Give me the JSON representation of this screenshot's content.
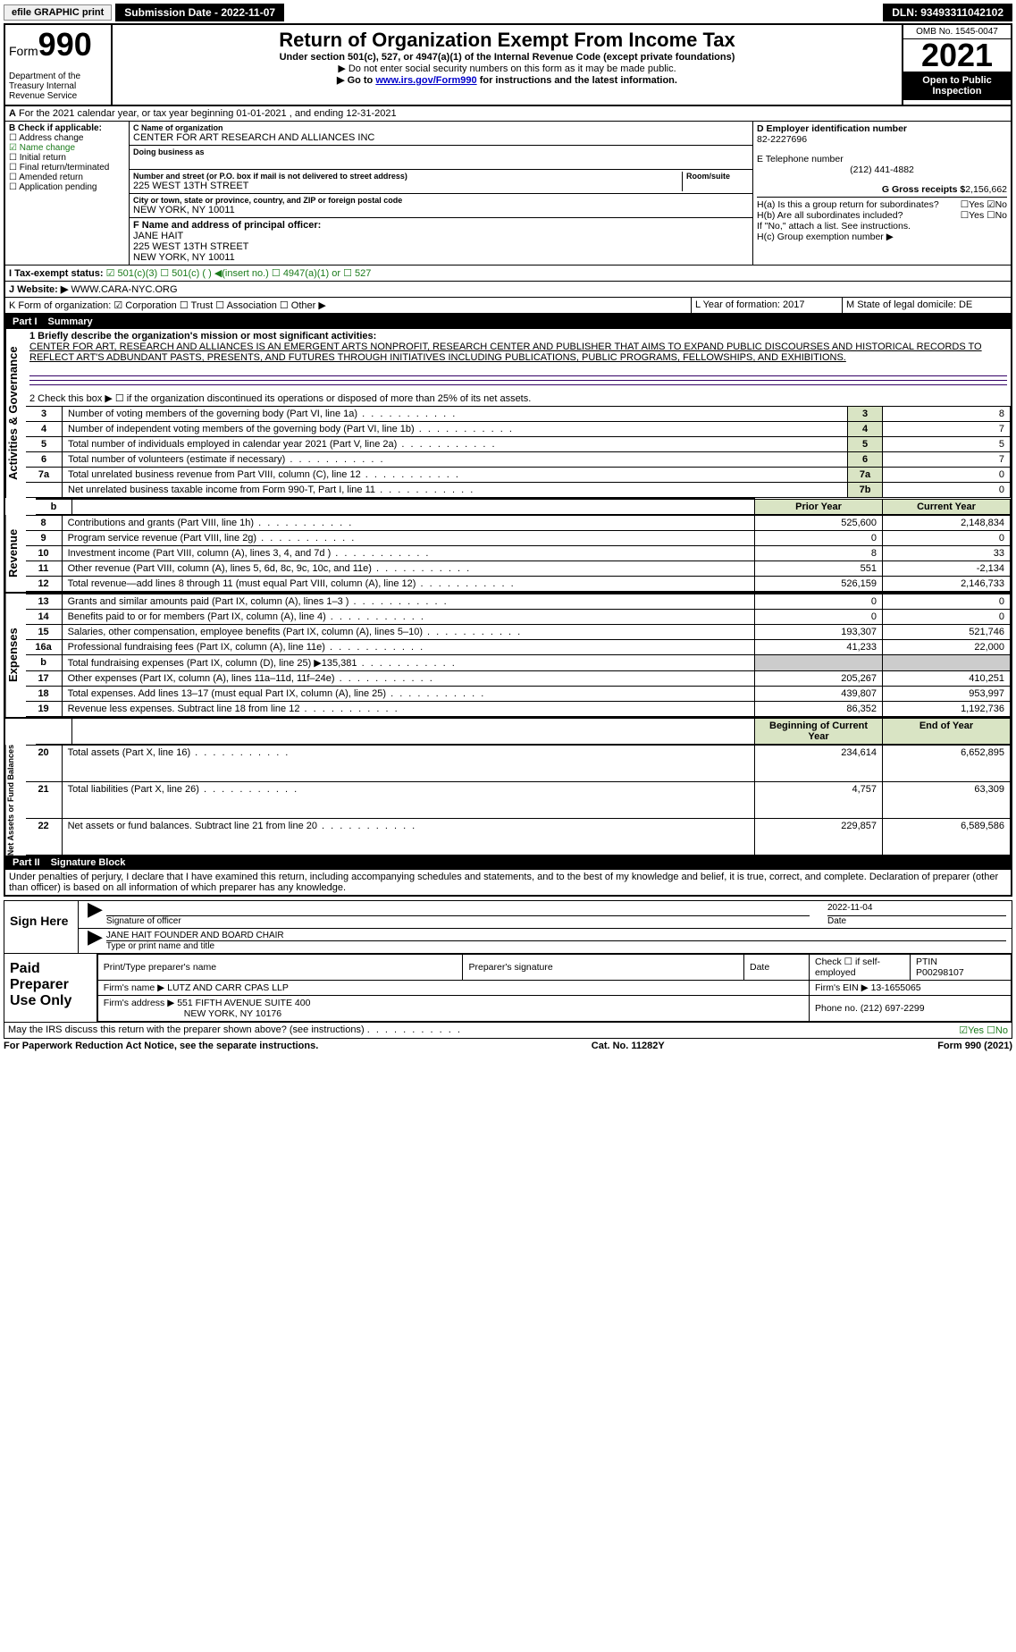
{
  "topbar": {
    "efile": "efile GRAPHIC print",
    "submission": "Submission Date - 2022-11-07",
    "dln": "DLN: 93493311042102"
  },
  "header": {
    "form_label": "Form",
    "form_number": "990",
    "dept": "Department of the Treasury Internal Revenue Service",
    "title": "Return of Organization Exempt From Income Tax",
    "subtitle": "Under section 501(c), 527, or 4947(a)(1) of the Internal Revenue Code (except private foundations)",
    "note1": "▶ Do not enter social security numbers on this form as it may be made public.",
    "note2_prefix": "▶ Go to ",
    "note2_link": "www.irs.gov/Form990",
    "note2_suffix": " for instructions and the latest information.",
    "omb": "OMB No. 1545-0047",
    "year": "2021",
    "open_public": "Open to Public Inspection"
  },
  "line_a": "For the 2021 calendar year, or tax year beginning 01-01-2021    , and ending 12-31-2021",
  "checklist": {
    "header": "B Check if applicable:",
    "items": [
      "☐ Address change",
      "☑ Name change",
      "☐ Initial return",
      "☐ Final return/terminated",
      "☐ Amended return",
      "☐ Application pending"
    ]
  },
  "org": {
    "c_label": "C Name of organization",
    "name": "CENTER FOR ART RESEARCH AND ALLIANCES INC",
    "dba_label": "Doing business as",
    "addr_label": "Number and street (or P.O. box if mail is not delivered to street address)",
    "room_label": "Room/suite",
    "addr": "225 WEST 13TH STREET",
    "city_label": "City or town, state or province, country, and ZIP or foreign postal code",
    "city": "NEW YORK, NY  10011",
    "f_label": "F Name and address of principal officer:",
    "officer_name": "JANE HAIT",
    "officer_addr1": "225 WEST 13TH STREET",
    "officer_addr2": "NEW YORK, NY  10011"
  },
  "right": {
    "d_label": "D Employer identification number",
    "ein": "82-2227696",
    "e_label": "E Telephone number",
    "phone": "(212) 441-4882",
    "g_label": "G Gross receipts $",
    "gross": "2,156,662",
    "ha_label": "H(a)  Is this a group return for subordinates?",
    "ha_ans": "☐Yes ☑No",
    "hb_label": "H(b)  Are all subordinates included?",
    "hb_ans": "☐Yes ☐No",
    "hb_note": "If \"No,\" attach a list. See instructions.",
    "hc_label": "H(c)  Group exemption number ▶"
  },
  "status": {
    "i_label": "I   Tax-exempt status:",
    "opts": "☑ 501(c)(3)   ☐ 501(c) (  ) ◀(insert no.)    ☐ 4947(a)(1) or   ☐ 527",
    "j_label": "J   Website: ▶",
    "website": "WWW.CARA-NYC.ORG",
    "k_label": "K Form of organization:  ☑ Corporation  ☐ Trust  ☐ Association  ☐ Other ▶",
    "l_label": "L Year of formation: 2017",
    "m_label": "M State of legal domicile: DE"
  },
  "part1": {
    "title": "Part I",
    "name": "Summary",
    "mission_label": "1 Briefly describe the organization's mission or most significant activities:",
    "mission": "CENTER FOR ART, RESEARCH AND ALLIANCES IS AN EMERGENT ARTS NONPROFIT, RESEARCH CENTER AND PUBLISHER THAT AIMS TO EXPAND PUBLIC DISCOURSES AND HISTORICAL RECORDS TO REFLECT ART'S ADBUNDANT PASTS, PRESENTS, AND FUTURES THROUGH INITIATIVES INCLUDING PUBLICATIONS, PUBLIC PROGRAMS, FELLOWSHIPS, AND EXHIBITIONS.",
    "line2": "2   Check this box ▶ ☐ if the organization discontinued its operations or disposed of more than 25% of its net assets."
  },
  "governance_rows": [
    {
      "n": "3",
      "desc": "Number of voting members of the governing body (Part VI, line 1a)",
      "box": "3",
      "val": "8"
    },
    {
      "n": "4",
      "desc": "Number of independent voting members of the governing body (Part VI, line 1b)",
      "box": "4",
      "val": "7"
    },
    {
      "n": "5",
      "desc": "Total number of individuals employed in calendar year 2021 (Part V, line 2a)",
      "box": "5",
      "val": "5"
    },
    {
      "n": "6",
      "desc": "Total number of volunteers (estimate if necessary)",
      "box": "6",
      "val": "7"
    },
    {
      "n": "7a",
      "desc": "Total unrelated business revenue from Part VIII, column (C), line 12",
      "box": "7a",
      "val": "0"
    },
    {
      "n": "",
      "desc": "Net unrelated business taxable income from Form 990-T, Part I, line 11",
      "box": "7b",
      "val": "0"
    }
  ],
  "prior_curr_header": {
    "b": "b",
    "prior": "Prior Year",
    "curr": "Current Year"
  },
  "revenue_rows": [
    {
      "n": "8",
      "desc": "Contributions and grants (Part VIII, line 1h)",
      "prior": "525,600",
      "curr": "2,148,834"
    },
    {
      "n": "9",
      "desc": "Program service revenue (Part VIII, line 2g)",
      "prior": "0",
      "curr": "0"
    },
    {
      "n": "10",
      "desc": "Investment income (Part VIII, column (A), lines 3, 4, and 7d )",
      "prior": "8",
      "curr": "33"
    },
    {
      "n": "11",
      "desc": "Other revenue (Part VIII, column (A), lines 5, 6d, 8c, 9c, 10c, and 11e)",
      "prior": "551",
      "curr": "-2,134"
    },
    {
      "n": "12",
      "desc": "Total revenue—add lines 8 through 11 (must equal Part VIII, column (A), line 12)",
      "prior": "526,159",
      "curr": "2,146,733"
    }
  ],
  "expense_rows": [
    {
      "n": "13",
      "desc": "Grants and similar amounts paid (Part IX, column (A), lines 1–3 )",
      "prior": "0",
      "curr": "0"
    },
    {
      "n": "14",
      "desc": "Benefits paid to or for members (Part IX, column (A), line 4)",
      "prior": "0",
      "curr": "0"
    },
    {
      "n": "15",
      "desc": "Salaries, other compensation, employee benefits (Part IX, column (A), lines 5–10)",
      "prior": "193,307",
      "curr": "521,746"
    },
    {
      "n": "16a",
      "desc": "Professional fundraising fees (Part IX, column (A), line 11e)",
      "prior": "41,233",
      "curr": "22,000"
    },
    {
      "n": "b",
      "desc": "Total fundraising expenses (Part IX, column (D), line 25) ▶135,381",
      "prior": "",
      "curr": ""
    },
    {
      "n": "17",
      "desc": "Other expenses (Part IX, column (A), lines 11a–11d, 11f–24e)",
      "prior": "205,267",
      "curr": "410,251"
    },
    {
      "n": "18",
      "desc": "Total expenses. Add lines 13–17 (must equal Part IX, column (A), line 25)",
      "prior": "439,807",
      "curr": "953,997"
    },
    {
      "n": "19",
      "desc": "Revenue less expenses. Subtract line 18 from line 12",
      "prior": "86,352",
      "curr": "1,192,736"
    }
  ],
  "net_header": {
    "prior": "Beginning of Current Year",
    "curr": "End of Year"
  },
  "net_rows": [
    {
      "n": "20",
      "desc": "Total assets (Part X, line 16)",
      "prior": "234,614",
      "curr": "6,652,895"
    },
    {
      "n": "21",
      "desc": "Total liabilities (Part X, line 26)",
      "prior": "4,757",
      "curr": "63,309"
    },
    {
      "n": "22",
      "desc": "Net assets or fund balances. Subtract line 21 from line 20",
      "prior": "229,857",
      "curr": "6,589,586"
    }
  ],
  "part2": {
    "title": "Part II",
    "name": "Signature Block",
    "declaration": "Under penalties of perjury, I declare that I have examined this return, including accompanying schedules and statements, and to the best of my knowledge and belief, it is true, correct, and complete. Declaration of preparer (other than officer) is based on all information of which preparer has any knowledge."
  },
  "sign": {
    "here": "Sign Here",
    "sig_label": "Signature of officer",
    "date": "2022-11-04",
    "date_label": "Date",
    "name": "JANE HAIT FOUNDER AND BOARD CHAIR",
    "name_label": "Type or print name and title"
  },
  "paid": {
    "title": "Paid Preparer Use Only",
    "h1": "Print/Type preparer's name",
    "h2": "Preparer's signature",
    "h3": "Date",
    "h4": "Check ☐ if self-employed",
    "h5": "PTIN",
    "ptin": "P00298107",
    "firm_label": "Firm's name    ▶",
    "firm": "LUTZ AND CARR CPAS LLP",
    "ein_label": "Firm's EIN ▶",
    "ein": "13-1655065",
    "addr_label": "Firm's address ▶",
    "addr": "551 FIFTH AVENUE SUITE 400",
    "addr2": "NEW YORK, NY  10176",
    "phone_label": "Phone no.",
    "phone": "(212) 697-2299"
  },
  "footer": {
    "discuss": "May the IRS discuss this return with the preparer shown above? (see instructions)",
    "ans": "☑Yes  ☐No",
    "paperwork": "For Paperwork Reduction Act Notice, see the separate instructions.",
    "cat": "Cat. No. 11282Y",
    "form": "Form 990 (2021)"
  },
  "sidebar": {
    "gov": "Activities & Governance",
    "rev": "Revenue",
    "exp": "Expenses",
    "net": "Net Assets or Fund Balances"
  }
}
